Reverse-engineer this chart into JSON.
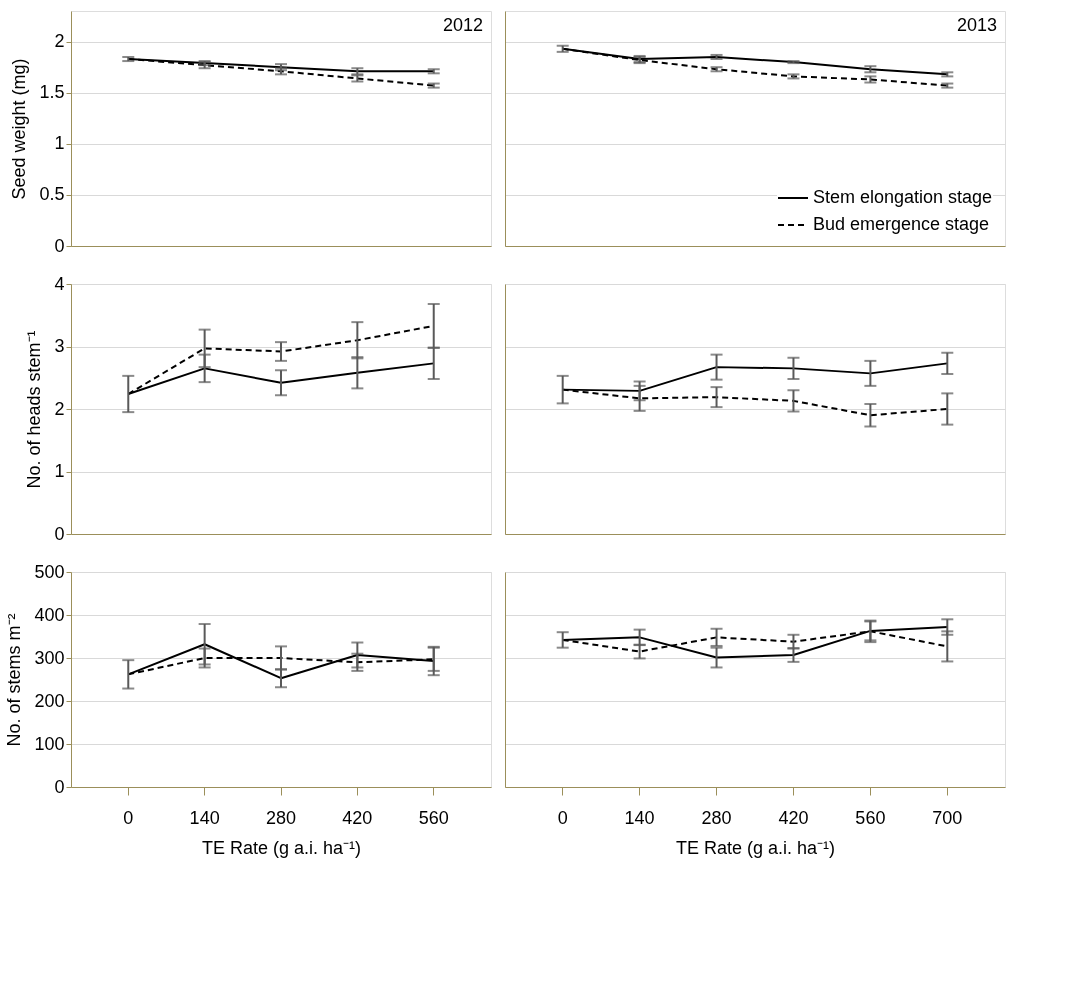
{
  "chart_data": [
    {
      "type": "line",
      "categories": [
        "0",
        "140",
        "280",
        "420",
        "560"
      ],
      "ylabel": "Seed weight (mg)",
      "ylim": [
        0,
        2.3
      ],
      "yticks": [
        0,
        0.5,
        1,
        1.5,
        2
      ],
      "grid": "y",
      "tick_labels": "y",
      "annotations": [
        "2012"
      ],
      "series": [
        {
          "color": "#000000",
          "line_style": "solid",
          "values": [
            1.83,
            1.79,
            1.75,
            1.71,
            1.71
          ],
          "errors": [
            0.02,
            0.02,
            0.03,
            0.03,
            0.02
          ]
        },
        {
          "color": "#000000",
          "line_style": "dashed",
          "values": [
            1.83,
            1.77,
            1.71,
            1.64,
            1.57
          ],
          "errors": [
            null,
            0.03,
            0.03,
            0.03,
            0.02
          ]
        }
      ]
    },
    {
      "type": "line",
      "categories": [
        "0",
        "140",
        "280",
        "420",
        "560",
        "700"
      ],
      "ylim": [
        0,
        2.3
      ],
      "yticks": [
        0,
        0.5,
        1,
        1.5,
        2
      ],
      "grid": "y",
      "tick_labels": false,
      "annotations": [
        "2013"
      ],
      "legend": "bottom right",
      "series": [
        {
          "name": "Stem elongation stage",
          "color": "#000000",
          "line_style": "solid",
          "values": [
            1.93,
            1.83,
            1.85,
            1.8,
            1.73,
            1.68
          ],
          "errors": [
            0.03,
            0.03,
            0.02,
            0.01,
            0.03,
            0.02
          ]
        },
        {
          "name": "Bud emergence stage",
          "color": "#000000",
          "line_style": "dashed",
          "values": [
            1.93,
            1.82,
            1.73,
            1.66,
            1.63,
            1.57
          ],
          "errors": [
            null,
            0.03,
            0.02,
            0.02,
            0.03,
            0.02
          ]
        }
      ]
    },
    {
      "type": "line",
      "categories": [
        "0",
        "140",
        "280",
        "420",
        "560"
      ],
      "ylabel": "No. of heads stem⁻¹",
      "ylim": [
        0,
        4
      ],
      "yticks": [
        0,
        1,
        2,
        3,
        4
      ],
      "grid": "y",
      "tick_labels": "y",
      "series": [
        {
          "color": "#000000",
          "line_style": "solid",
          "values": [
            2.24,
            2.65,
            2.42,
            2.58,
            2.73
          ],
          "errors": [
            0.29,
            0.22,
            0.2,
            0.25,
            0.25
          ]
        },
        {
          "color": "#000000",
          "line_style": "dashed",
          "values": [
            2.24,
            2.97,
            2.92,
            3.1,
            3.33
          ],
          "errors": [
            null,
            0.3,
            0.15,
            0.29,
            0.35
          ]
        }
      ]
    },
    {
      "type": "line",
      "categories": [
        "0",
        "140",
        "280",
        "420",
        "560",
        "700"
      ],
      "ylim": [
        0,
        4
      ],
      "yticks": [
        0,
        1,
        2,
        3,
        4
      ],
      "grid": "y",
      "tick_labels": false,
      "series": [
        {
          "color": "#000000",
          "line_style": "solid",
          "values": [
            2.31,
            2.29,
            2.67,
            2.65,
            2.57,
            2.73
          ],
          "errors": [
            0.22,
            0.15,
            0.2,
            0.17,
            0.2,
            0.17
          ]
        },
        {
          "color": "#000000",
          "line_style": "dashed",
          "values": [
            2.31,
            2.17,
            2.19,
            2.13,
            1.9,
            2.0
          ],
          "errors": [
            null,
            0.2,
            0.16,
            0.17,
            0.18,
            0.25
          ]
        }
      ]
    },
    {
      "type": "line",
      "categories": [
        "0",
        "140",
        "280",
        "420",
        "560"
      ],
      "xlabel": "TE Rate (g a.i. ha⁻¹)",
      "ylabel": "No. of stems m⁻²",
      "ylim": [
        0,
        500
      ],
      "yticks": [
        0,
        100,
        200,
        300,
        400,
        500
      ],
      "grid": "y",
      "series": [
        {
          "color": "#000000",
          "line_style": "solid",
          "values": [
            262,
            332,
            253,
            307,
            293
          ],
          "errors": [
            33,
            47,
            21,
            29,
            33
          ]
        },
        {
          "color": "#000000",
          "line_style": "dashed",
          "values": [
            262,
            300,
            300,
            290,
            297
          ],
          "errors": [
            null,
            22,
            27,
            20,
            27
          ]
        }
      ]
    },
    {
      "type": "line",
      "categories": [
        "0",
        "140",
        "280",
        "420",
        "560",
        "700"
      ],
      "xlabel": "TE Rate (g a.i. ha⁻¹)",
      "ylim": [
        0,
        500
      ],
      "yticks": [
        0,
        100,
        200,
        300,
        400,
        500
      ],
      "grid": "y",
      "tick_labels": "x",
      "series": [
        {
          "color": "#000000",
          "line_style": "solid",
          "values": [
            342,
            348,
            301,
            307,
            363,
            372
          ],
          "errors": [
            18,
            18,
            23,
            16,
            22,
            18
          ]
        },
        {
          "color": "#000000",
          "line_style": "dashed",
          "values": [
            342,
            315,
            348,
            338,
            362,
            327
          ],
          "errors": [
            null,
            16,
            20,
            16,
            25,
            35
          ]
        }
      ]
    }
  ]
}
